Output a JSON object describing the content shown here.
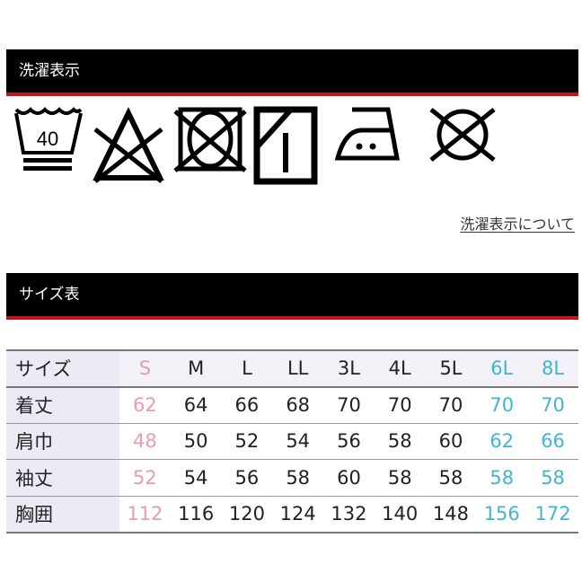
{
  "care_section": {
    "title": "洗濯表示",
    "icons": [
      {
        "name": "wash-40-gentle-icon",
        "label": "40"
      },
      {
        "name": "no-bleach-icon"
      },
      {
        "name": "no-tumble-dry-icon"
      },
      {
        "name": "drip-dry-shade-icon"
      },
      {
        "name": "iron-medium-icon"
      },
      {
        "name": "no-dry-clean-icon"
      }
    ],
    "link_label": "洗濯表示について"
  },
  "size_section": {
    "title": "サイズ表",
    "colors": {
      "small": "#e99bb0",
      "regular": "#222222",
      "large": "#3fb5d6"
    },
    "header": {
      "label": "サイズ",
      "sizes": [
        "S",
        "M",
        "L",
        "LL",
        "3L",
        "4L",
        "5L",
        "6L",
        "8L"
      ]
    },
    "rows": [
      {
        "label": "着丈",
        "values": [
          "62",
          "64",
          "66",
          "68",
          "70",
          "70",
          "70",
          "70",
          "70"
        ]
      },
      {
        "label": "肩巾",
        "values": [
          "48",
          "50",
          "52",
          "54",
          "56",
          "58",
          "60",
          "62",
          "66"
        ]
      },
      {
        "label": "袖丈",
        "values": [
          "52",
          "54",
          "56",
          "58",
          "60",
          "58",
          "58",
          "58",
          "58"
        ]
      },
      {
        "label": "胸囲",
        "values": [
          "112",
          "116",
          "120",
          "124",
          "132",
          "140",
          "148",
          "156",
          "172"
        ]
      }
    ]
  }
}
